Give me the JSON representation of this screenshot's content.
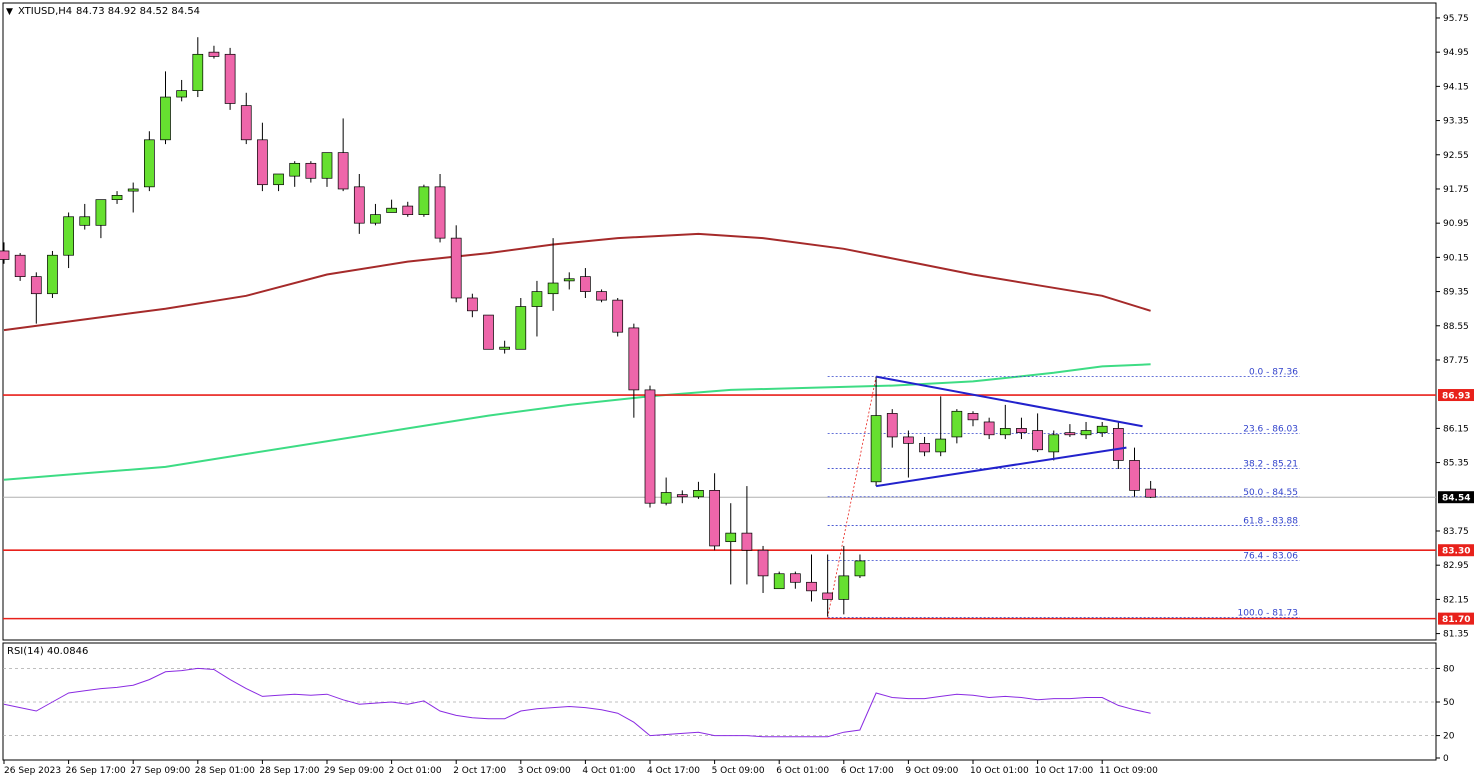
{
  "header": {
    "arrow_glyph": "▼",
    "symbol_label": "XTIUSD,H4",
    "ohlc_label": "84.73 84.92 84.52 84.54"
  },
  "rsi_panel": {
    "label": "RSI(14) 40.0846",
    "ticks": [
      "80",
      "50",
      "20",
      "0"
    ]
  },
  "price_axis": {
    "ticks": [
      "95.75",
      "94.95",
      "94.15",
      "93.35",
      "92.55",
      "91.75",
      "90.95",
      "90.15",
      "89.35",
      "88.55",
      "87.75",
      "86.15",
      "85.35",
      "83.75",
      "82.95",
      "82.15",
      "81.35"
    ],
    "tick_values": [
      95.75,
      94.95,
      94.15,
      93.35,
      92.55,
      91.75,
      90.95,
      90.15,
      89.35,
      88.55,
      87.75,
      86.15,
      85.35,
      83.75,
      82.95,
      82.15,
      81.35
    ]
  },
  "time_axis": {
    "labels": [
      "26 Sep 2023",
      "26 Sep 17:00",
      "27 Sep 09:00",
      "28 Sep 01:00",
      "28 Sep 17:00",
      "29 Sep 09:00",
      "2 Oct 01:00",
      "2 Oct 17:00",
      "3 Oct 09:00",
      "4 Oct 01:00",
      "4 Oct 17:00",
      "5 Oct 09:00",
      "6 Oct 01:00",
      "6 Oct 17:00",
      "9 Oct 09:00",
      "10 Oct 01:00",
      "10 Oct 17:00",
      "11 Oct 09:00"
    ],
    "label_bars": [
      0,
      4,
      8,
      12,
      16,
      20,
      24,
      28,
      32,
      36,
      40,
      44,
      48,
      52,
      56,
      60,
      64,
      68
    ]
  },
  "colors": {
    "bull_fill": "#66e030",
    "bear_fill": "#ee66aa",
    "candle_outline": "#000000",
    "ma_slow": "#a52a2a",
    "ma_fast": "#3ddc84",
    "level_line": "#e8211b",
    "triangle_line": "#2222cc",
    "fib_line": "#3344cc",
    "rsi_line": "#8a2be2",
    "current_price_bg": "#000000",
    "level_price_bg": "#e8211b"
  },
  "chart_data": {
    "type": "candlestick",
    "symbol": "XTIUSD",
    "timeframe": "H4",
    "price_range": [
      81.2,
      96.1
    ],
    "candles": [
      {
        "o": 90.3,
        "h": 90.5,
        "l": 90.0,
        "c": 90.1
      },
      {
        "o": 90.2,
        "h": 90.25,
        "l": 89.6,
        "c": 89.7
      },
      {
        "o": 89.7,
        "h": 89.8,
        "l": 88.6,
        "c": 89.3
      },
      {
        "o": 89.3,
        "h": 90.3,
        "l": 89.2,
        "c": 90.2
      },
      {
        "o": 90.2,
        "h": 91.2,
        "l": 89.9,
        "c": 91.1
      },
      {
        "o": 90.9,
        "h": 91.4,
        "l": 90.8,
        "c": 91.1
      },
      {
        "o": 90.9,
        "h": 91.5,
        "l": 90.6,
        "c": 91.5
      },
      {
        "o": 91.5,
        "h": 91.7,
        "l": 91.4,
        "c": 91.6
      },
      {
        "o": 91.7,
        "h": 91.9,
        "l": 91.2,
        "c": 91.75
      },
      {
        "o": 91.8,
        "h": 93.1,
        "l": 91.7,
        "c": 92.9
      },
      {
        "o": 92.9,
        "h": 94.5,
        "l": 92.8,
        "c": 93.9
      },
      {
        "o": 93.9,
        "h": 94.3,
        "l": 93.8,
        "c": 94.05
      },
      {
        "o": 94.05,
        "h": 95.3,
        "l": 93.9,
        "c": 94.9
      },
      {
        "o": 94.95,
        "h": 95.1,
        "l": 94.8,
        "c": 94.85
      },
      {
        "o": 94.9,
        "h": 95.05,
        "l": 93.6,
        "c": 93.75
      },
      {
        "o": 93.7,
        "h": 94.0,
        "l": 92.8,
        "c": 92.9
      },
      {
        "o": 92.9,
        "h": 93.3,
        "l": 91.7,
        "c": 91.85
      },
      {
        "o": 91.85,
        "h": 92.1,
        "l": 91.7,
        "c": 92.1
      },
      {
        "o": 92.05,
        "h": 92.4,
        "l": 91.8,
        "c": 92.35
      },
      {
        "o": 92.35,
        "h": 92.4,
        "l": 91.9,
        "c": 92.0
      },
      {
        "o": 92.0,
        "h": 92.6,
        "l": 91.8,
        "c": 92.6
      },
      {
        "o": 92.6,
        "h": 93.4,
        "l": 91.7,
        "c": 91.75
      },
      {
        "o": 91.8,
        "h": 92.1,
        "l": 90.7,
        "c": 90.95
      },
      {
        "o": 90.95,
        "h": 91.4,
        "l": 90.9,
        "c": 91.15
      },
      {
        "o": 91.2,
        "h": 91.5,
        "l": 91.2,
        "c": 91.3
      },
      {
        "o": 91.35,
        "h": 91.45,
        "l": 91.1,
        "c": 91.15
      },
      {
        "o": 91.15,
        "h": 91.85,
        "l": 91.1,
        "c": 91.8
      },
      {
        "o": 91.8,
        "h": 92.1,
        "l": 90.5,
        "c": 90.6
      },
      {
        "o": 90.6,
        "h": 90.9,
        "l": 89.1,
        "c": 89.2
      },
      {
        "o": 89.2,
        "h": 89.3,
        "l": 88.75,
        "c": 88.9
      },
      {
        "o": 88.8,
        "h": 88.8,
        "l": 88.0,
        "c": 88.0
      },
      {
        "o": 88.0,
        "h": 88.2,
        "l": 87.9,
        "c": 88.05
      },
      {
        "o": 88.0,
        "h": 89.2,
        "l": 88.0,
        "c": 89.0
      },
      {
        "o": 89.0,
        "h": 89.6,
        "l": 88.3,
        "c": 89.35
      },
      {
        "o": 89.3,
        "h": 90.6,
        "l": 88.9,
        "c": 89.55
      },
      {
        "o": 89.6,
        "h": 89.8,
        "l": 89.4,
        "c": 89.65
      },
      {
        "o": 89.7,
        "h": 89.9,
        "l": 89.2,
        "c": 89.35
      },
      {
        "o": 89.35,
        "h": 89.4,
        "l": 89.1,
        "c": 89.15
      },
      {
        "o": 89.15,
        "h": 89.2,
        "l": 88.3,
        "c": 88.4
      },
      {
        "o": 88.5,
        "h": 88.6,
        "l": 86.4,
        "c": 87.05
      },
      {
        "o": 87.05,
        "h": 87.15,
        "l": 84.3,
        "c": 84.4
      },
      {
        "o": 84.4,
        "h": 85.0,
        "l": 84.35,
        "c": 84.65
      },
      {
        "o": 84.6,
        "h": 84.7,
        "l": 84.4,
        "c": 84.55
      },
      {
        "o": 84.55,
        "h": 84.9,
        "l": 84.5,
        "c": 84.7
      },
      {
        "o": 84.7,
        "h": 85.1,
        "l": 83.3,
        "c": 83.4
      },
      {
        "o": 83.5,
        "h": 84.4,
        "l": 82.5,
        "c": 83.7
      },
      {
        "o": 83.7,
        "h": 84.8,
        "l": 82.5,
        "c": 83.3
      },
      {
        "o": 83.3,
        "h": 83.4,
        "l": 82.3,
        "c": 82.7
      },
      {
        "o": 82.4,
        "h": 82.8,
        "l": 82.4,
        "c": 82.75
      },
      {
        "o": 82.75,
        "h": 82.8,
        "l": 82.4,
        "c": 82.55
      },
      {
        "o": 82.55,
        "h": 83.2,
        "l": 82.1,
        "c": 82.35
      },
      {
        "o": 82.3,
        "h": 83.2,
        "l": 81.75,
        "c": 82.15
      },
      {
        "o": 82.15,
        "h": 83.4,
        "l": 81.8,
        "c": 82.7
      },
      {
        "o": 82.7,
        "h": 83.2,
        "l": 82.65,
        "c": 83.05
      },
      {
        "o": 84.9,
        "h": 87.36,
        "l": 84.8,
        "c": 86.45
      },
      {
        "o": 86.5,
        "h": 86.6,
        "l": 85.7,
        "c": 85.95
      },
      {
        "o": 85.95,
        "h": 86.1,
        "l": 85.0,
        "c": 85.8
      },
      {
        "o": 85.8,
        "h": 85.95,
        "l": 85.5,
        "c": 85.6
      },
      {
        "o": 85.6,
        "h": 86.9,
        "l": 85.5,
        "c": 85.9
      },
      {
        "o": 85.95,
        "h": 86.6,
        "l": 85.8,
        "c": 86.55
      },
      {
        "o": 86.5,
        "h": 86.55,
        "l": 86.2,
        "c": 86.35
      },
      {
        "o": 86.3,
        "h": 86.4,
        "l": 85.9,
        "c": 86.0
      },
      {
        "o": 86.0,
        "h": 86.7,
        "l": 85.9,
        "c": 86.15
      },
      {
        "o": 86.15,
        "h": 86.4,
        "l": 85.9,
        "c": 86.05
      },
      {
        "o": 86.1,
        "h": 86.5,
        "l": 85.6,
        "c": 85.65
      },
      {
        "o": 85.6,
        "h": 86.1,
        "l": 85.4,
        "c": 86.0
      },
      {
        "o": 86.05,
        "h": 86.25,
        "l": 85.95,
        "c": 86.0
      },
      {
        "o": 86.0,
        "h": 86.3,
        "l": 85.9,
        "c": 86.1
      },
      {
        "o": 86.05,
        "h": 86.3,
        "l": 85.95,
        "c": 86.2
      },
      {
        "o": 86.15,
        "h": 86.3,
        "l": 85.2,
        "c": 85.4
      },
      {
        "o": 85.4,
        "h": 85.7,
        "l": 84.55,
        "c": 84.7
      },
      {
        "o": 84.73,
        "h": 84.92,
        "l": 84.52,
        "c": 84.54
      }
    ],
    "ma_slow": {
      "points": [
        [
          0,
          88.45
        ],
        [
          6,
          88.75
        ],
        [
          10,
          88.95
        ],
        [
          15,
          89.25
        ],
        [
          20,
          89.75
        ],
        [
          25,
          90.05
        ],
        [
          30,
          90.25
        ],
        [
          34,
          90.45
        ],
        [
          38,
          90.6
        ],
        [
          43,
          90.7
        ],
        [
          47,
          90.6
        ],
        [
          52,
          90.35
        ],
        [
          56,
          90.05
        ],
        [
          60,
          89.75
        ],
        [
          64,
          89.5
        ],
        [
          68,
          89.25
        ],
        [
          71,
          88.9
        ]
      ]
    },
    "ma_fast": {
      "points": [
        [
          0,
          84.95
        ],
        [
          5,
          85.1
        ],
        [
          10,
          85.25
        ],
        [
          15,
          85.55
        ],
        [
          20,
          85.85
        ],
        [
          25,
          86.15
        ],
        [
          30,
          86.45
        ],
        [
          35,
          86.7
        ],
        [
          40,
          86.9
        ],
        [
          45,
          87.05
        ],
        [
          50,
          87.1
        ],
        [
          55,
          87.15
        ],
        [
          60,
          87.25
        ],
        [
          65,
          87.45
        ],
        [
          68,
          87.6
        ],
        [
          71,
          87.65
        ]
      ]
    },
    "horizontal_levels": [
      86.93,
      83.3,
      81.7
    ],
    "current_price": 84.54,
    "fibonacci": {
      "levels": [
        {
          "label": "0.0 - 87.36",
          "value": 87.36
        },
        {
          "label": "23.6 - 86.03",
          "value": 86.03
        },
        {
          "label": "38.2 - 85.21",
          "value": 85.21
        },
        {
          "label": "50.0 - 84.55",
          "value": 84.55
        },
        {
          "label": "61.8 - 83.88",
          "value": 83.88
        },
        {
          "label": "76.4 - 83.06",
          "value": 83.06
        },
        {
          "label": "100.0 - 81.73",
          "value": 81.73
        }
      ],
      "swing_from": [
        51,
        81.73
      ],
      "swing_to": [
        54,
        87.36
      ]
    },
    "triangle": {
      "upper": [
        [
          54,
          87.36
        ],
        [
          70.5,
          86.2
        ]
      ],
      "lower": [
        [
          54,
          84.8
        ],
        [
          69.5,
          85.7
        ]
      ]
    },
    "rsi": {
      "period": 14,
      "value": 40.0846,
      "range": [
        0,
        100
      ],
      "levels": [
        80,
        50,
        20
      ],
      "points": [
        48,
        45,
        42,
        50,
        58,
        60,
        62,
        63,
        65,
        70,
        77,
        78,
        80,
        79,
        70,
        62,
        55,
        56,
        57,
        56,
        57,
        52,
        48,
        49,
        50,
        48,
        51,
        42,
        38,
        36,
        35,
        35,
        42,
        44,
        45,
        46,
        45,
        43,
        40,
        32,
        20,
        21,
        22,
        23,
        20,
        20,
        20,
        19,
        19,
        19,
        19,
        19,
        23,
        25,
        58,
        54,
        53,
        53,
        55,
        57,
        56,
        54,
        55,
        54,
        52,
        53,
        53,
        54,
        54,
        47,
        43,
        40
      ]
    }
  }
}
